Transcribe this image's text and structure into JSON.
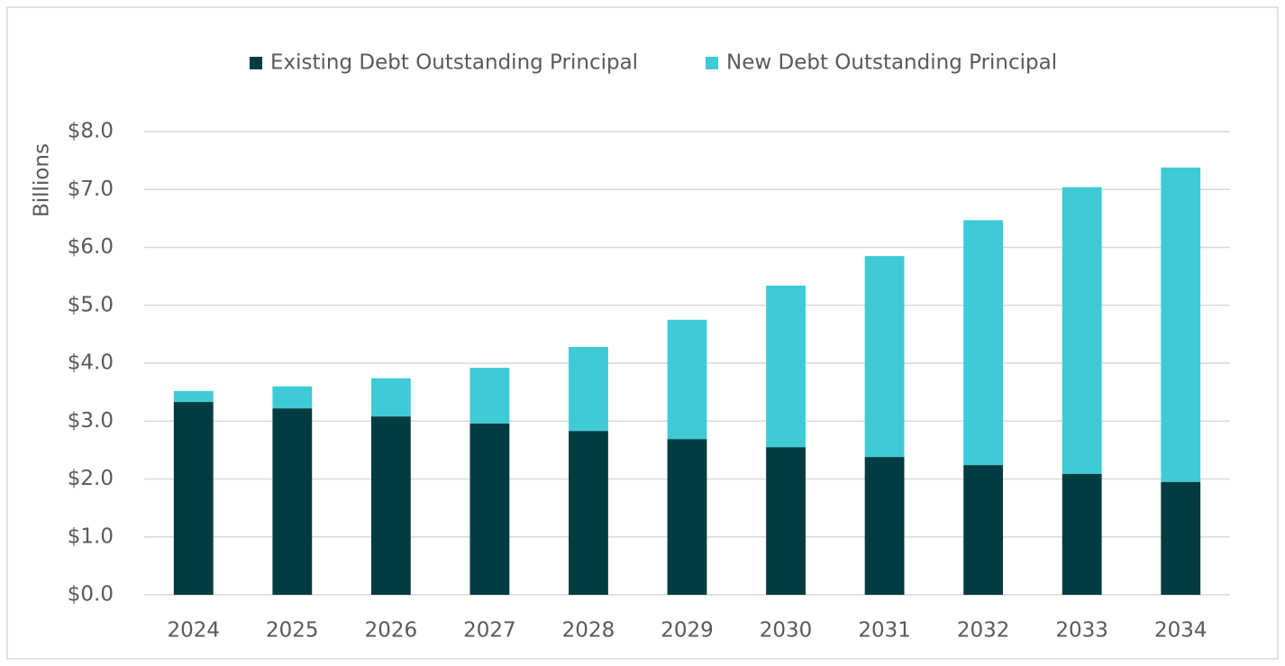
{
  "chart_data": {
    "type": "stacked_bar",
    "y_axis_label": "Billions",
    "categories": [
      "2024",
      "2025",
      "2026",
      "2027",
      "2028",
      "2029",
      "2030",
      "2031",
      "2032",
      "2033",
      "2034"
    ],
    "series": [
      {
        "name": "Existing Debt Outstanding Principal",
        "color": "#023c40",
        "values": [
          3.33,
          3.22,
          3.08,
          2.96,
          2.83,
          2.69,
          2.55,
          2.38,
          2.24,
          2.09,
          1.95
        ]
      },
      {
        "name": "New Debt Outstanding Principal",
        "color": "#3ecbd6",
        "values": [
          0.19,
          0.38,
          0.66,
          0.96,
          1.45,
          2.06,
          2.79,
          3.47,
          4.23,
          4.95,
          5.43
        ]
      }
    ],
    "ylim": [
      0,
      8
    ],
    "yticks": [
      {
        "value": 0,
        "label": "$0.0"
      },
      {
        "value": 1,
        "label": "$1.0"
      },
      {
        "value": 2,
        "label": "$2.0"
      },
      {
        "value": 3,
        "label": "$3.0"
      },
      {
        "value": 4,
        "label": "$4.0"
      },
      {
        "value": 5,
        "label": "$5.0"
      },
      {
        "value": 6,
        "label": "$6.0"
      },
      {
        "value": 7,
        "label": "$7.0"
      },
      {
        "value": 8,
        "label": "$8.0"
      }
    ],
    "grid": true,
    "legend": "top"
  }
}
